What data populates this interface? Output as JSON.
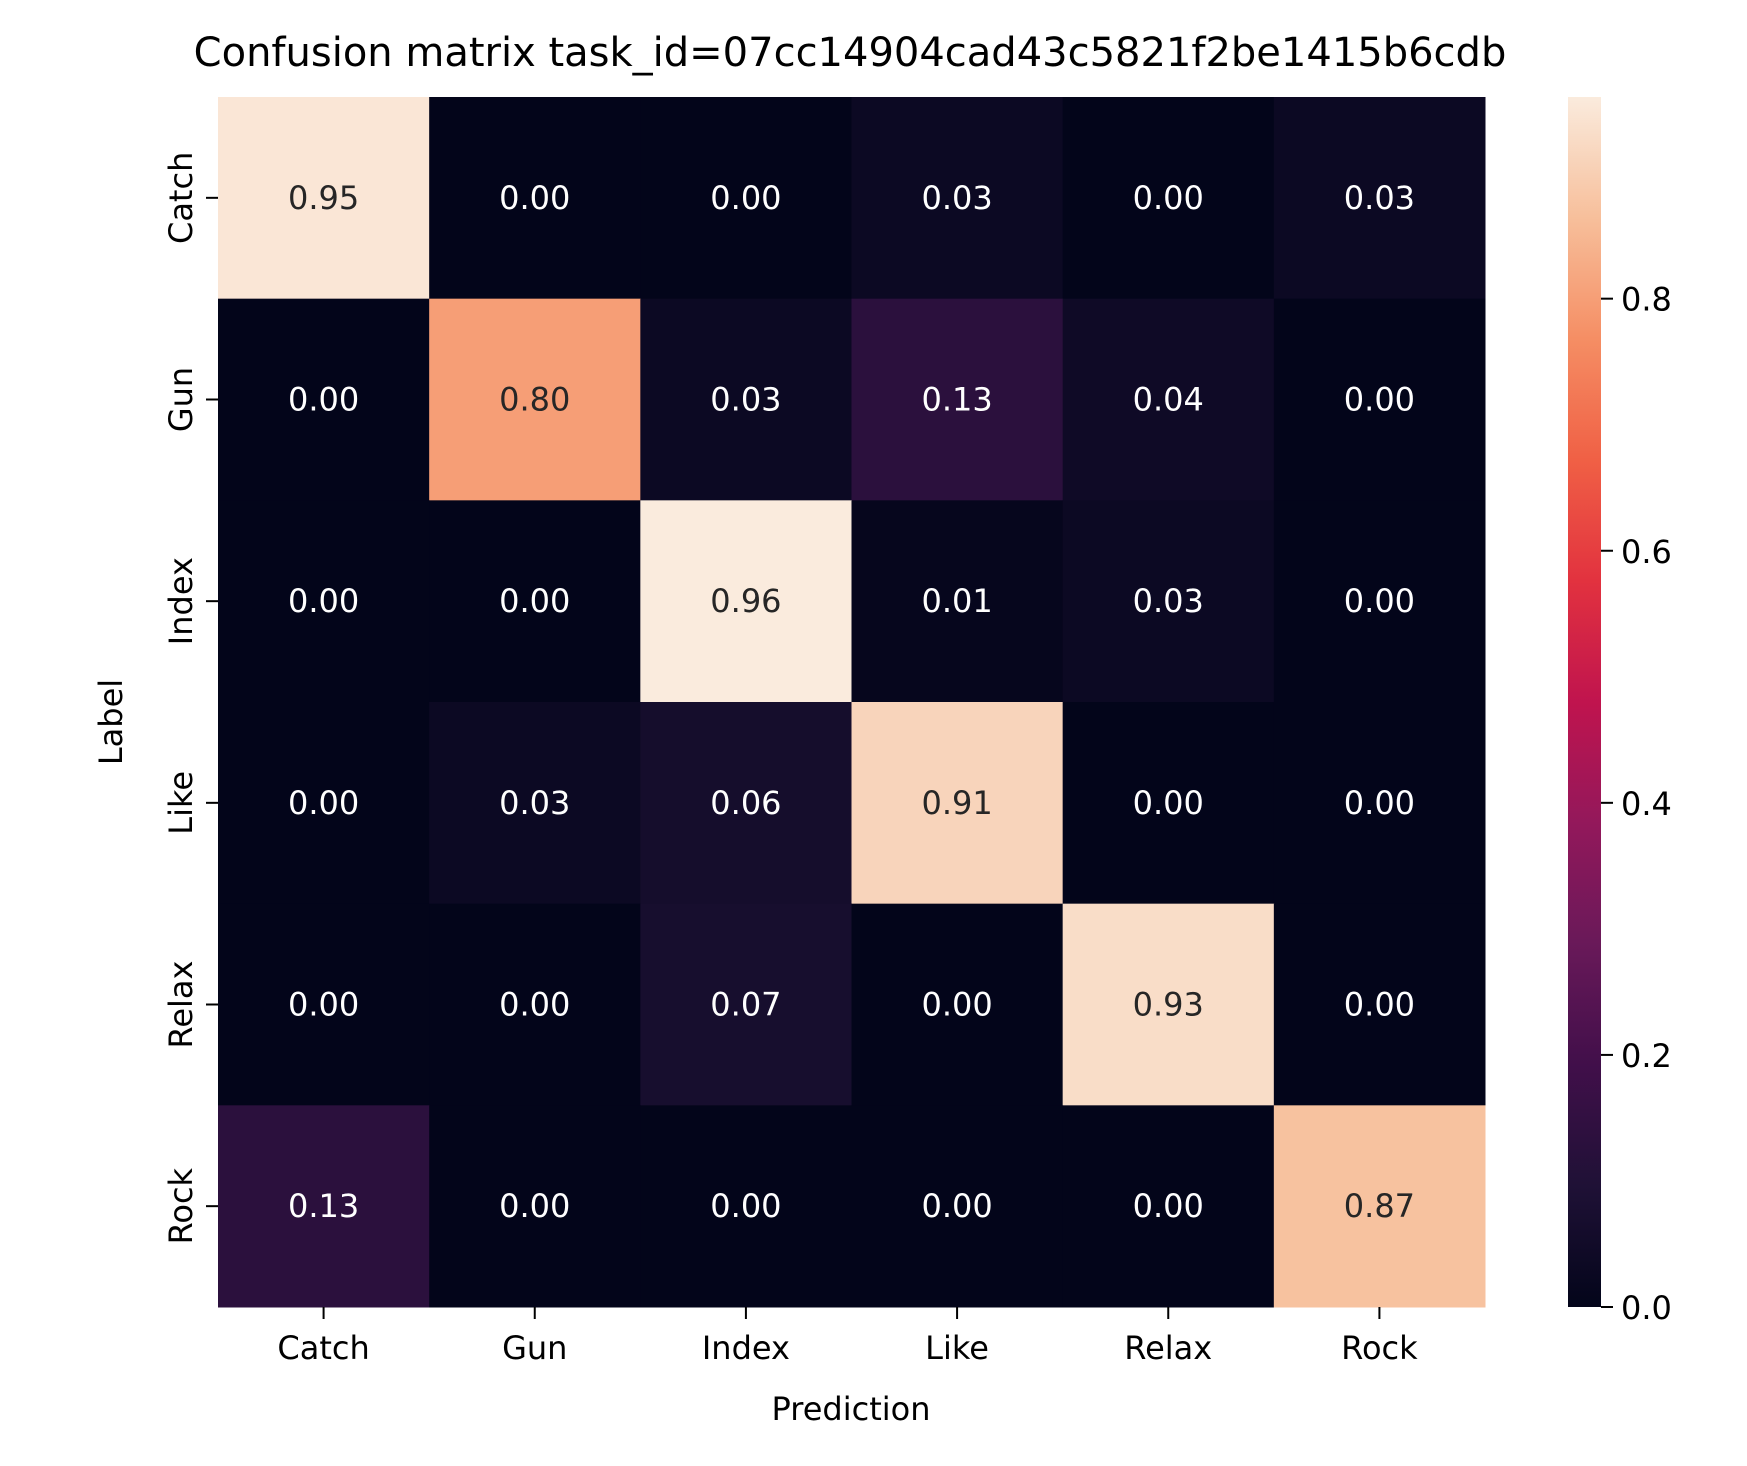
{
  "chart_data": {
    "type": "heatmap",
    "title": "Confusion matrix task_id=07cc14904cad43c5821f2be1415b6cdb",
    "xlabel": "Prediction",
    "ylabel": "Label",
    "x_categories": [
      "Catch",
      "Gun",
      "Index",
      "Like",
      "Relax",
      "Rock"
    ],
    "y_categories": [
      "Catch",
      "Gun",
      "Index",
      "Like",
      "Relax",
      "Rock"
    ],
    "values": [
      [
        0.95,
        0.0,
        0.0,
        0.03,
        0.0,
        0.03
      ],
      [
        0.0,
        0.8,
        0.03,
        0.13,
        0.04,
        0.0
      ],
      [
        0.0,
        0.0,
        0.96,
        0.01,
        0.03,
        0.0
      ],
      [
        0.0,
        0.03,
        0.06,
        0.91,
        0.0,
        0.0
      ],
      [
        0.0,
        0.0,
        0.07,
        0.0,
        0.93,
        0.0
      ],
      [
        0.13,
        0.0,
        0.0,
        0.0,
        0.0,
        0.87
      ]
    ],
    "value_format": "0.00",
    "colorbar": {
      "min": 0.0,
      "max": 0.96,
      "ticks": [
        0.0,
        0.2,
        0.4,
        0.6,
        0.8
      ],
      "tick_labels": [
        "0.0",
        "0.2",
        "0.4",
        "0.6",
        "0.8"
      ],
      "colormap": "rocket"
    },
    "grid": false,
    "legend": "colorbar-right"
  }
}
